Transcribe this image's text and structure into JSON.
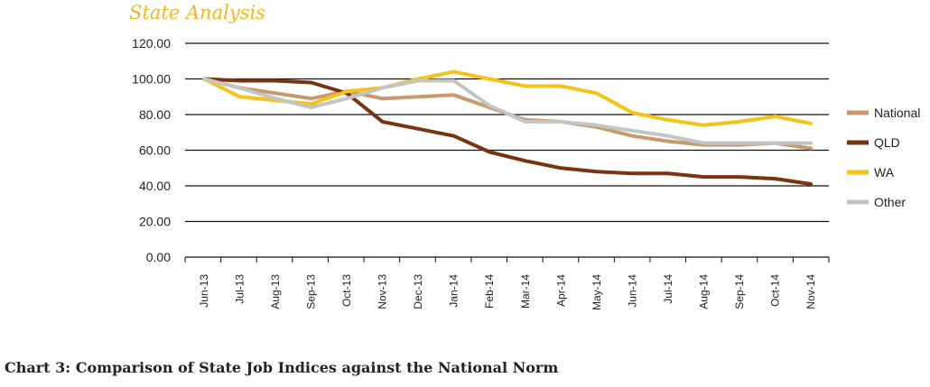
{
  "header": {
    "subtitle": "State Analysis"
  },
  "caption": "Chart 3: Comparison of State Job Indices against the National Norm",
  "colors": {
    "National": "#c8996b",
    "QLD": "#7a3310",
    "WA": "#f5c21a",
    "Other": "#c4c4c4"
  },
  "chart_data": {
    "type": "line",
    "title": "",
    "xlabel": "",
    "ylabel": "",
    "ylim": [
      0,
      120
    ],
    "yticks": [
      "0.00",
      "20.00",
      "40.00",
      "60.00",
      "80.00",
      "100.00",
      "120.00"
    ],
    "grid": true,
    "legend_position": "right",
    "categories": [
      "Jun-13",
      "Jul-13",
      "Aug-13",
      "Sep-13",
      "Oct-13",
      "Nov-13",
      "Dec-13",
      "Jan-14",
      "Feb-14",
      "Mar-14",
      "Apr-14",
      "May-14",
      "Jun-14",
      "Jul-14",
      "Aug-14",
      "Sep-14",
      "Oct-14",
      "Nov-14"
    ],
    "series": [
      {
        "name": "National",
        "values": [
          100,
          95,
          92,
          89,
          93,
          89,
          90,
          91,
          84,
          77,
          76,
          73,
          68,
          65,
          63,
          63,
          64,
          61
        ]
      },
      {
        "name": "QLD",
        "values": [
          100,
          99,
          99,
          98,
          92,
          76,
          72,
          68,
          59,
          54,
          50,
          48,
          47,
          47,
          45,
          45,
          44,
          41
        ]
      },
      {
        "name": "WA",
        "values": [
          100,
          90,
          88,
          86,
          93,
          95,
          100,
          104,
          100,
          96,
          96,
          92,
          81,
          77,
          74,
          76,
          79,
          75
        ]
      },
      {
        "name": "Other",
        "values": [
          100,
          95,
          89,
          84,
          89,
          95,
          99,
          99,
          85,
          76,
          76,
          74,
          71,
          68,
          64,
          64,
          64,
          64
        ]
      }
    ]
  }
}
